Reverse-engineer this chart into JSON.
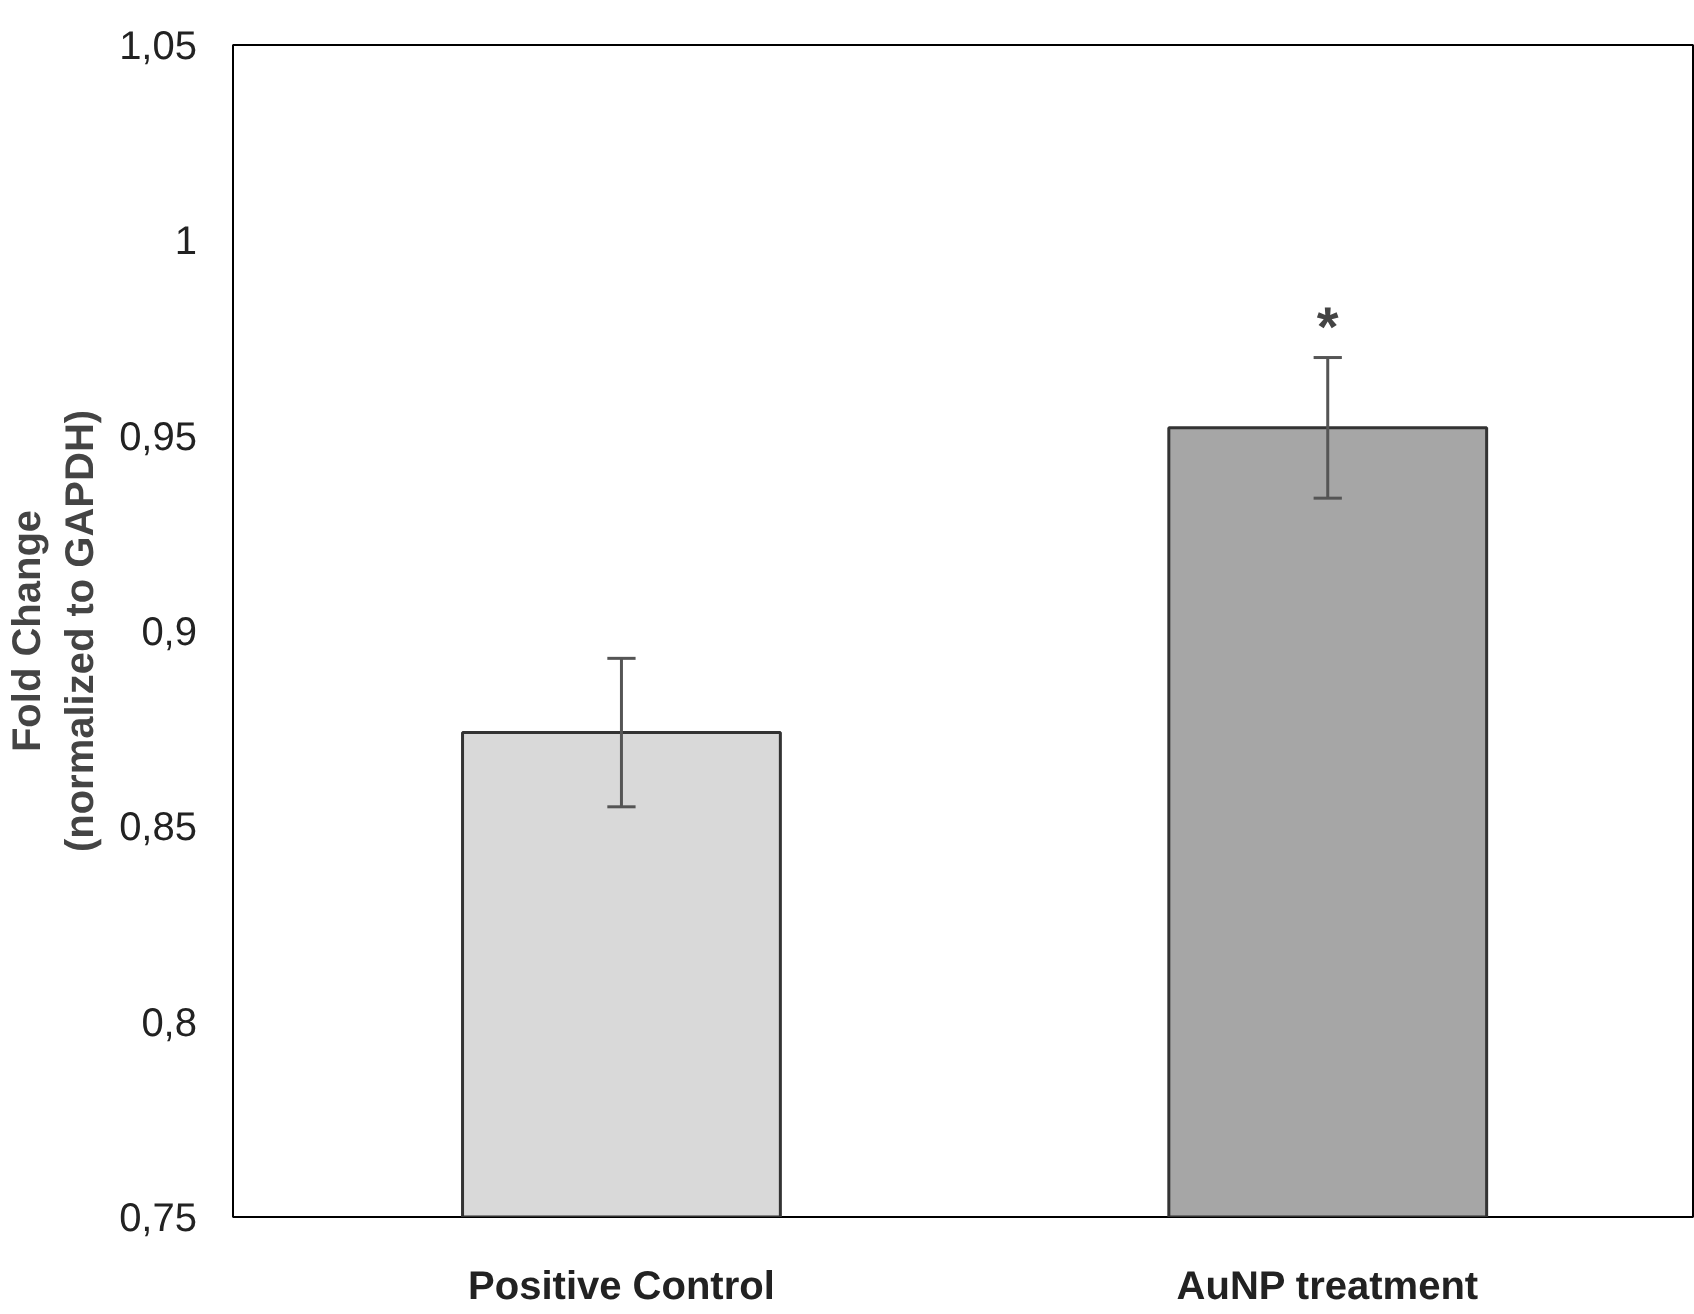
{
  "chart_data": {
    "type": "bar",
    "ylabel": "Fold Change\n(normalized to GAPDH)",
    "categories": [
      "Positive Control",
      "AuNP treatment"
    ],
    "values": [
      0.874,
      0.952
    ],
    "colors": [
      "#d9d9d9",
      "#a6a6a6"
    ],
    "errors": [
      0.019,
      0.018
    ],
    "ylim": [
      0.75,
      1.05
    ],
    "yticks": [
      {
        "value": 0.75,
        "label": "0,75"
      },
      {
        "value": 0.8,
        "label": "0,8"
      },
      {
        "value": 0.85,
        "label": "0,85"
      },
      {
        "value": 0.9,
        "label": "0,9"
      },
      {
        "value": 0.95,
        "label": "0,95"
      },
      {
        "value": 1,
        "label": "1"
      },
      {
        "value": 1.05,
        "label": "1,05"
      }
    ],
    "grid": false,
    "annotations": [
      {
        "text": "*",
        "x": "AuNP treatment",
        "y": 0.97
      }
    ]
  }
}
